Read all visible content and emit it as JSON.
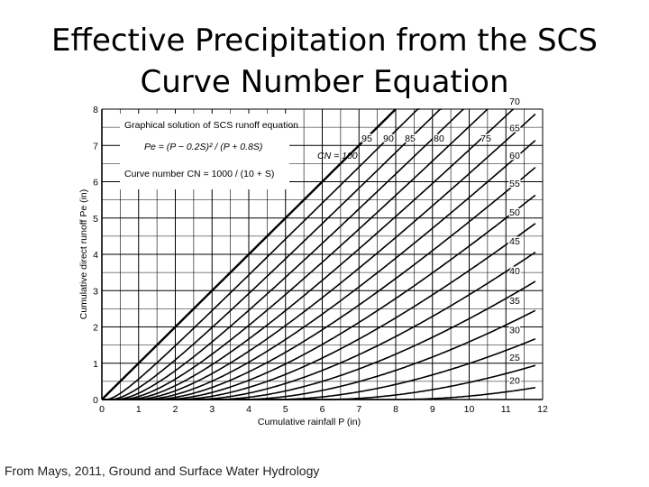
{
  "slide": {
    "title_line1": "Effective Precipitation from the SCS",
    "title_line2": "Curve Number Equation",
    "credit": "From Mays, 2011, Ground and Surface Water Hydrology"
  },
  "chart_data": {
    "type": "line",
    "title": "Graphical solution of SCS runoff equation",
    "equation_pe": "Pe = (P − 0.2S)² / (P + 0.8S)",
    "equation_cn": "Curve number CN = 1000 / (10 + S)",
    "xlabel": "Cumulative rainfall P (in)",
    "ylabel": "Cumulative direct runoff Pe (in)",
    "xlim": [
      0,
      12
    ],
    "ylim": [
      0,
      8
    ],
    "x_ticks": [
      "0",
      "1",
      "2",
      "3",
      "4",
      "5",
      "6",
      "7",
      "8",
      "9",
      "10",
      "11",
      "12"
    ],
    "y_ticks": [
      "0",
      "1",
      "2",
      "3",
      "4",
      "5",
      "6",
      "7",
      "8"
    ],
    "grid": true,
    "cn_label_100": "CN = 100",
    "series": [
      {
        "name": "100",
        "cn": 100
      },
      {
        "name": "95",
        "cn": 95
      },
      {
        "name": "90",
        "cn": 90
      },
      {
        "name": "85",
        "cn": 85
      },
      {
        "name": "80",
        "cn": 80
      },
      {
        "name": "75",
        "cn": 75
      },
      {
        "name": "70",
        "cn": 70
      },
      {
        "name": "65",
        "cn": 65
      },
      {
        "name": "60",
        "cn": 60
      },
      {
        "name": "55",
        "cn": 55
      },
      {
        "name": "50",
        "cn": 50
      },
      {
        "name": "45",
        "cn": 45
      },
      {
        "name": "40",
        "cn": 40
      },
      {
        "name": "35",
        "cn": 35
      },
      {
        "name": "30",
        "cn": 30
      },
      {
        "name": "25",
        "cn": 25
      },
      {
        "name": "20",
        "cn": 20
      }
    ]
  }
}
